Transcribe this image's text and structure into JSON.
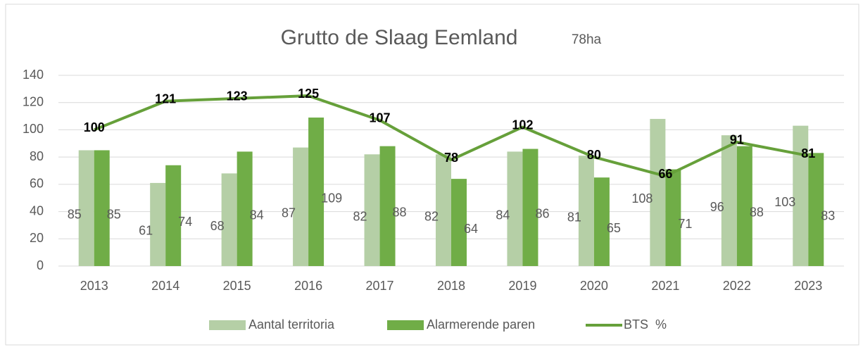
{
  "chart_data": {
    "type": "bar-line",
    "title": "Grutto de Slaag Eemland",
    "subtitle": "78ha",
    "categories": [
      "2013",
      "2014",
      "2015",
      "2016",
      "2017",
      "2018",
      "2019",
      "2020",
      "2021",
      "2022",
      "2023"
    ],
    "series": [
      {
        "name": "Aantal territoria",
        "type": "bar",
        "color": "#b5cfa6",
        "values": [
          85,
          61,
          68,
          87,
          82,
          82,
          84,
          81,
          108,
          96,
          103
        ]
      },
      {
        "name": "Alarmerende paren",
        "type": "bar",
        "color": "#70ad47",
        "values": [
          85,
          74,
          84,
          109,
          88,
          64,
          86,
          65,
          71,
          88,
          83
        ]
      },
      {
        "name": "BTS  %",
        "type": "line",
        "color": "#66a03a",
        "values": [
          100,
          121,
          123,
          125,
          107,
          78,
          102,
          80,
          66,
          91,
          81
        ]
      }
    ],
    "ylim": [
      0,
      140
    ],
    "yticks": [
      0,
      20,
      40,
      60,
      80,
      100,
      120,
      140
    ],
    "grid": true,
    "legend": "bottom"
  }
}
